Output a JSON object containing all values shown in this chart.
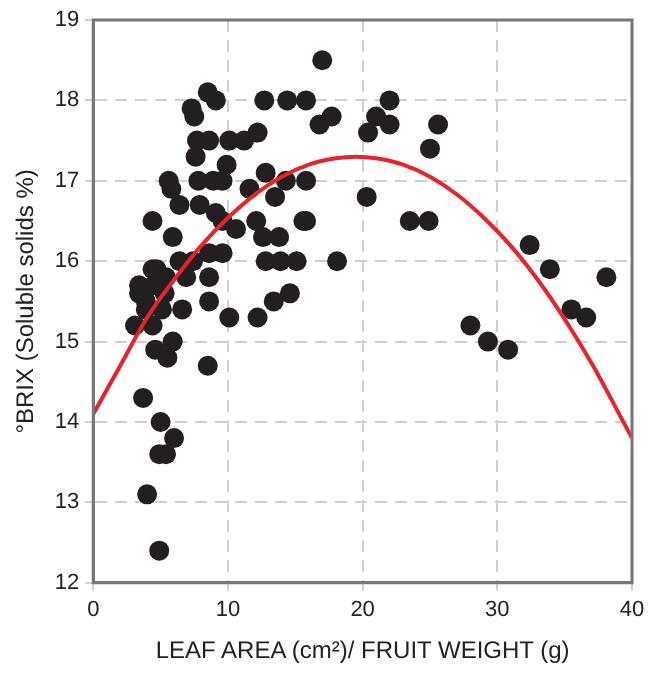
{
  "chart_data": {
    "type": "scatter",
    "xlabel": "LEAF AREA (cm²)/ FRUIT WEIGHT (g)",
    "ylabel": "°BRIX (Soluble solids %)",
    "xlim": [
      0,
      40
    ],
    "xticks": [
      0,
      10,
      20,
      30,
      40
    ],
    "ylim": [
      12,
      19
    ],
    "yticks": [
      12,
      13,
      14,
      15,
      16,
      17,
      18,
      19
    ],
    "grid": true,
    "legend": false,
    "marker": "circle",
    "series": [
      {
        "color": "#231f20",
        "x": [
          17.0,
          15.8,
          16.8,
          17.7,
          15.8,
          15.8,
          18.1,
          20.4,
          21.0,
          22.0,
          22.0,
          20.3,
          25.0,
          25.6,
          23.5,
          24.9,
          28.0,
          29.3,
          30.8,
          32.4,
          33.9,
          35.5,
          36.6,
          38.1,
          8.5,
          9.1,
          7.3,
          7.5,
          12.7,
          14.4,
          7.7,
          8.6,
          7.6,
          10.1,
          11.2,
          12.2,
          9.9,
          5.6,
          7.8,
          8.9,
          9.6,
          11.6,
          12.8,
          14.3,
          13.5,
          5.8,
          6.4,
          7.9,
          9.1,
          9.6,
          10.6,
          12.1,
          4.4,
          5.9,
          12.6,
          13.8,
          15.6,
          6.4,
          7.4,
          8.6,
          9.6,
          12.8,
          13.9,
          15.1,
          4.4,
          5.4,
          6.9,
          8.6,
          3.4,
          8.6,
          13.4,
          14.6,
          3.9,
          6.6,
          10.1,
          12.2,
          3.4,
          3.9,
          5.1,
          3.1,
          4.4,
          5.9,
          4.6,
          5.5,
          8.5,
          3.7,
          5.0,
          6.0,
          4.9,
          5.4,
          4.0,
          4.9,
          4.5,
          4.7,
          5.3
        ],
        "values": [
          18.5,
          18.0,
          17.7,
          17.8,
          17.0,
          16.5,
          16.0,
          17.6,
          17.8,
          18.0,
          17.7,
          16.8,
          17.4,
          17.7,
          16.5,
          16.5,
          15.2,
          15.0,
          14.9,
          16.2,
          15.9,
          15.4,
          15.3,
          15.8,
          18.1,
          18.0,
          17.9,
          17.8,
          18.0,
          18.0,
          17.5,
          17.5,
          17.3,
          17.5,
          17.5,
          17.6,
          17.2,
          17.0,
          17.0,
          17.0,
          17.0,
          16.9,
          17.1,
          17.0,
          16.8,
          16.9,
          16.7,
          16.7,
          16.6,
          16.5,
          16.4,
          16.5,
          16.5,
          16.3,
          16.3,
          16.3,
          16.5,
          16.0,
          16.0,
          16.1,
          16.1,
          16.0,
          16.0,
          16.0,
          15.9,
          15.8,
          15.8,
          15.8,
          15.7,
          15.5,
          15.5,
          15.6,
          15.5,
          15.4,
          15.3,
          15.3,
          15.6,
          15.4,
          15.4,
          15.2,
          15.2,
          15.0,
          14.9,
          14.8,
          14.7,
          14.3,
          14.0,
          13.8,
          13.6,
          13.6,
          13.1,
          12.4,
          15.7,
          15.9,
          15.6
        ]
      },
      {
        "type": "line",
        "color": "#e8232a",
        "marker": "none",
        "x": [
          0,
          2,
          4,
          6,
          8,
          10,
          12,
          14,
          16,
          18,
          19.5,
          21,
          23,
          25,
          27,
          29,
          31,
          33,
          35,
          37,
          40
        ],
        "values": [
          14.1,
          14.7,
          15.3,
          15.77,
          16.19,
          16.54,
          16.83,
          17.05,
          17.2,
          17.28,
          17.3,
          17.28,
          17.2,
          17.05,
          16.83,
          16.54,
          16.19,
          15.77,
          15.28,
          14.73,
          13.8
        ]
      }
    ]
  }
}
